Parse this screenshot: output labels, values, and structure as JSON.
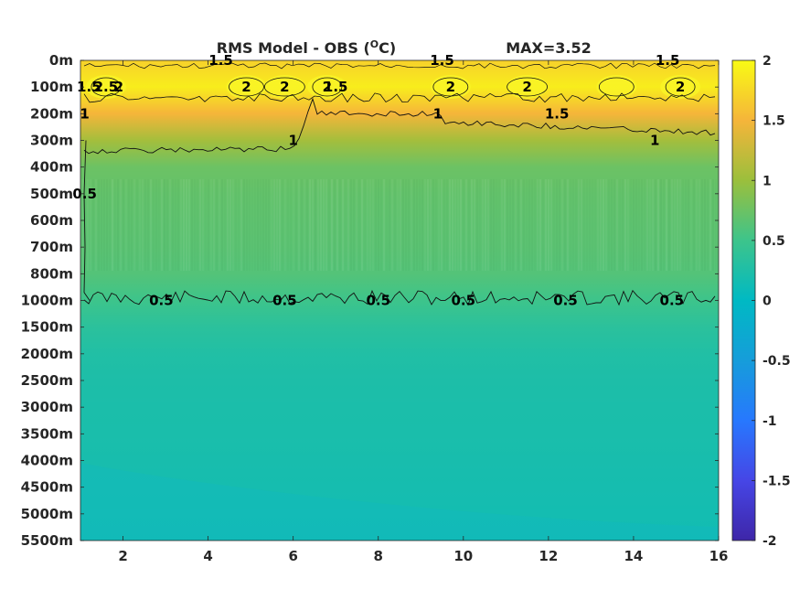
{
  "chart_data": {
    "type": "heatmap",
    "title": "RMS Model - OBS (",
    "title_unit_sup": "O",
    "title_unit_rest": "C)",
    "max_label": "MAX=3.52",
    "x_ticks": [
      2,
      4,
      6,
      8,
      10,
      12,
      14,
      16
    ],
    "xlim": [
      1,
      16
    ],
    "y_ticks": [
      "0m",
      "100m",
      "200m",
      "300m",
      "400m",
      "500m",
      "600m",
      "700m",
      "800m",
      "1000m",
      "1500m",
      "2000m",
      "2500m",
      "3000m",
      "3500m",
      "4000m",
      "4500m",
      "5000m",
      "5500m"
    ],
    "colorbar": {
      "min": -2,
      "max": 2,
      "ticks": [
        "2",
        "1.5",
        "1",
        "0.5",
        "0",
        "-0.5",
        "-1",
        "-1.5",
        "-2"
      ],
      "colormap": "parula"
    },
    "field_profile": [
      {
        "depth": "0m",
        "value": 1.7
      },
      {
        "depth": "100m",
        "value": 1.9
      },
      {
        "depth": "200m",
        "value": 1.5
      },
      {
        "depth": "300m",
        "value": 1.05
      },
      {
        "depth": "400m",
        "value": 0.75
      },
      {
        "depth": "500m",
        "value": 0.7
      },
      {
        "depth": "600m",
        "value": 0.68
      },
      {
        "depth": "700m",
        "value": 0.66
      },
      {
        "depth": "800m",
        "value": 0.62
      },
      {
        "depth": "1000m",
        "value": 0.5
      },
      {
        "depth": "1500m",
        "value": 0.35
      },
      {
        "depth": "2000m",
        "value": 0.27
      },
      {
        "depth": "2500m",
        "value": 0.24
      },
      {
        "depth": "3000m",
        "value": 0.22
      },
      {
        "depth": "3500m",
        "value": 0.21
      },
      {
        "depth": "4000m",
        "value": 0.2
      },
      {
        "depth": "4500m",
        "value": 0.18
      },
      {
        "depth": "5000m",
        "value": 0.16
      },
      {
        "depth": "5500m",
        "value": 0.15
      }
    ],
    "contour_labels": [
      {
        "text": "2.5",
        "x": 1.6,
        "depth": "100m"
      },
      {
        "text": "1.5",
        "x": 1.2,
        "depth": "100m"
      },
      {
        "text": "2",
        "x": 1.9,
        "depth": "100m"
      },
      {
        "text": "1",
        "x": 1.1,
        "depth": "200m"
      },
      {
        "text": "1.5",
        "x": 4.3,
        "depth": "0m"
      },
      {
        "text": "2",
        "x": 4.9,
        "depth": "100m"
      },
      {
        "text": "2",
        "x": 5.8,
        "depth": "100m"
      },
      {
        "text": "2",
        "x": 6.8,
        "depth": "100m"
      },
      {
        "text": "1.5",
        "x": 7.0,
        "depth": "100m"
      },
      {
        "text": "1.5",
        "x": 9.5,
        "depth": "0m"
      },
      {
        "text": "2",
        "x": 9.7,
        "depth": "100m"
      },
      {
        "text": "2",
        "x": 11.5,
        "depth": "100m"
      },
      {
        "text": "1.5",
        "x": 12.2,
        "depth": "200m"
      },
      {
        "text": "1.5",
        "x": 14.8,
        "depth": "0m"
      },
      {
        "text": "2",
        "x": 15.1,
        "depth": "100m"
      },
      {
        "text": "1",
        "x": 6.0,
        "depth": "300m"
      },
      {
        "text": "1",
        "x": 9.4,
        "depth": "200m"
      },
      {
        "text": "1",
        "x": 14.5,
        "depth": "300m"
      },
      {
        "text": "0.5",
        "x": 1.1,
        "depth": "500m"
      },
      {
        "text": "0.5",
        "x": 2.9,
        "depth": "1000m"
      },
      {
        "text": "0.5",
        "x": 5.8,
        "depth": "1000m"
      },
      {
        "text": "0.5",
        "x": 8.0,
        "depth": "1000m"
      },
      {
        "text": "0.5",
        "x": 10.0,
        "depth": "1000m"
      },
      {
        "text": "0.5",
        "x": 12.4,
        "depth": "1000m"
      },
      {
        "text": "0.5",
        "x": 14.9,
        "depth": "1000m"
      }
    ]
  }
}
